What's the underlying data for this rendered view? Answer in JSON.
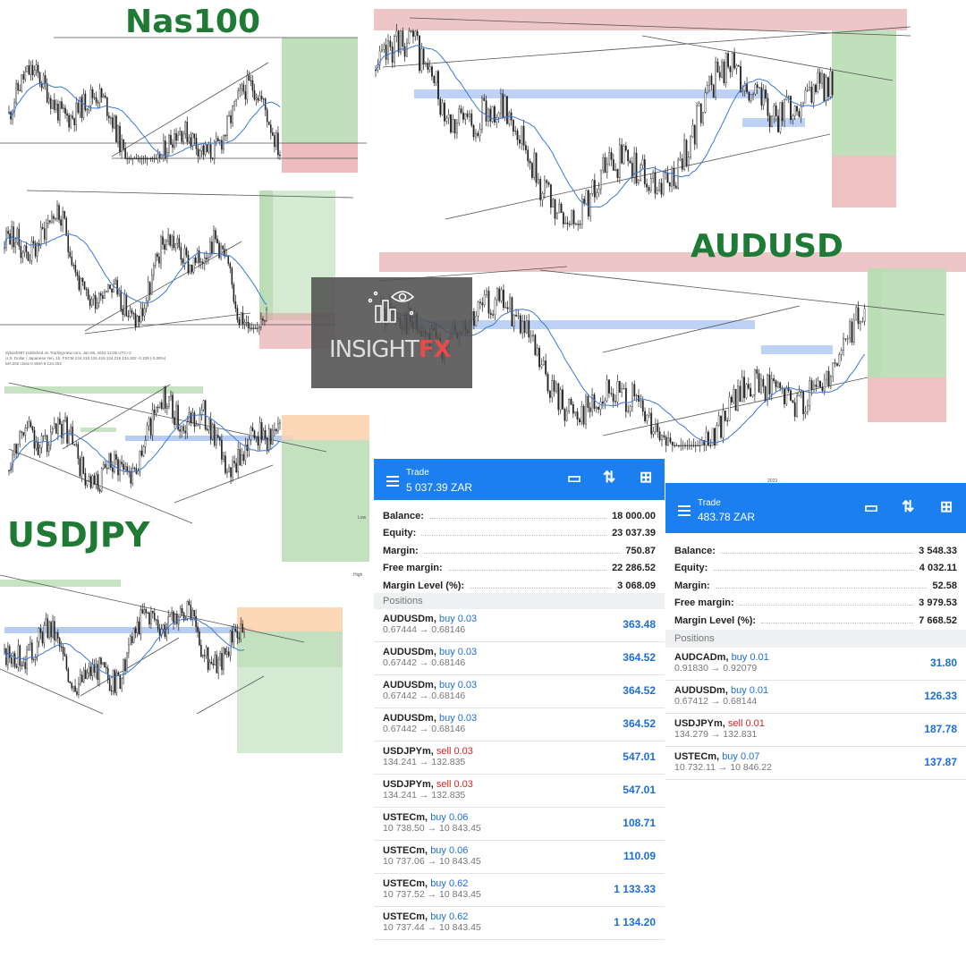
{
  "labels": {
    "nas100": "Nas100",
    "audusd": "AUDUSD",
    "usdjpy": "USDJPY"
  },
  "logo": {
    "text": "INSIGHT",
    "accent": "FX",
    "icon": "eye-chart-icon"
  },
  "chart_captions": {
    "usdjpy_header_line1": "dykash997 published on TradingView.com, Jan 06, 2023 12:06 UTC+2",
    "usdjpy_header_line2": "U.S. Dollar / Japanese Yen, 1h, FXCM 134.418 134.418 134.219 134.302 -0.108 (-0.08%)",
    "usdjpy_header_line3": "MA 200 close 0 SMA 9 134.403",
    "usdjpy_bottom_axis": "High",
    "usdjpy_low": "Low",
    "audusd_bottom_axis": "2023"
  },
  "colors": {
    "zone_green": "#b9dcb4",
    "zone_red": "#e5a0a3",
    "zone_blue": "#aec7f2",
    "zone_orange": "#fbd1ad",
    "ma_line": "#3a78d9",
    "candle": "#222222",
    "brand": "#1b7ff0"
  },
  "account_left": {
    "header": {
      "title": "Trade",
      "balance_text": "5 037.39 ZAR"
    },
    "icons": [
      "menu-icon",
      "card-icon",
      "sort-icon",
      "new-order-icon"
    ],
    "summary": [
      {
        "label": "Balance:",
        "value": "18 000.00"
      },
      {
        "label": "Equity:",
        "value": "23 037.39"
      },
      {
        "label": "Margin:",
        "value": "750.87"
      },
      {
        "label": "Free margin:",
        "value": "22 286.52"
      },
      {
        "label": "Margin Level (%):",
        "value": "3 068.09"
      }
    ],
    "positions_label": "Positions",
    "positions": [
      {
        "symbol": "AUDUSDm,",
        "side": "buy 0.03",
        "type": "buy",
        "prices": "0.67444 → 0.68146",
        "profit": "363.48"
      },
      {
        "symbol": "AUDUSDm,",
        "side": "buy 0.03",
        "type": "buy",
        "prices": "0.67442 → 0.68146",
        "profit": "364.52"
      },
      {
        "symbol": "AUDUSDm,",
        "side": "buy 0.03",
        "type": "buy",
        "prices": "0.67442 → 0.68146",
        "profit": "364.52"
      },
      {
        "symbol": "AUDUSDm,",
        "side": "buy 0.03",
        "type": "buy",
        "prices": "0.67442 → 0.68146",
        "profit": "364.52"
      },
      {
        "symbol": "USDJPYm,",
        "side": "sell 0.03",
        "type": "sell",
        "prices": "134.241 → 132.835",
        "profit": "547.01"
      },
      {
        "symbol": "USDJPYm,",
        "side": "sell 0.03",
        "type": "sell",
        "prices": "134.241 → 132.835",
        "profit": "547.01"
      },
      {
        "symbol": "USTECm,",
        "side": "buy 0.06",
        "type": "buy",
        "prices": "10 738.50 → 10 843.45",
        "profit": "108.71"
      },
      {
        "symbol": "USTECm,",
        "side": "buy 0.06",
        "type": "buy",
        "prices": "10 737.06 → 10 843.45",
        "profit": "110.09"
      },
      {
        "symbol": "USTECm,",
        "side": "buy 0.62",
        "type": "buy",
        "prices": "10 737.52 → 10 843.45",
        "profit": "1 133.33"
      },
      {
        "symbol": "USTECm,",
        "side": "buy 0.62",
        "type": "buy",
        "prices": "10 737.44 → 10 843.45",
        "profit": "1 134.20"
      }
    ]
  },
  "account_right": {
    "header": {
      "title": "Trade",
      "balance_text": "483.78 ZAR"
    },
    "icons": [
      "menu-icon",
      "card-icon",
      "sort-icon",
      "new-order-icon"
    ],
    "summary": [
      {
        "label": "Balance:",
        "value": "3 548.33"
      },
      {
        "label": "Equity:",
        "value": "4 032.11"
      },
      {
        "label": "Margin:",
        "value": "52.58"
      },
      {
        "label": "Free margin:",
        "value": "3 979.53"
      },
      {
        "label": "Margin Level (%):",
        "value": "7 668.52"
      }
    ],
    "positions_label": "Positions",
    "positions": [
      {
        "symbol": "AUDCADm,",
        "side": "buy 0.01",
        "type": "buy",
        "prices": "0.91830 → 0.92079",
        "profit": "31.80"
      },
      {
        "symbol": "AUDUSDm,",
        "side": "buy 0.01",
        "type": "buy",
        "prices": "0.67412 → 0.68144",
        "profit": "126.33"
      },
      {
        "symbol": "USDJPYm,",
        "side": "sell 0.01",
        "type": "sell",
        "prices": "134.279 → 132.831",
        "profit": "187.78"
      },
      {
        "symbol": "USTECm,",
        "side": "buy 0.07",
        "type": "buy",
        "prices": "10 732.11 → 10 846.22",
        "profit": "137.87"
      }
    ]
  }
}
